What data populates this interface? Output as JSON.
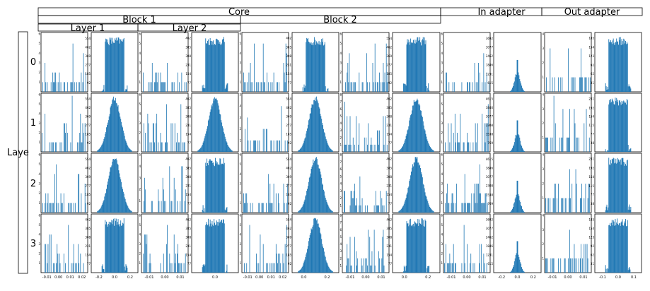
{
  "headers": {
    "core": "Core",
    "block1": "Block 1",
    "block2": "Block 2",
    "layer1": "Layer 1",
    "layer2": "Layer 2",
    "in_adapter": "In adapter",
    "out_adapter": "Out adapter",
    "row_axis_label": "Laye",
    "row_labels": [
      "0",
      "1",
      "2",
      "3"
    ]
  },
  "colors": {
    "bar": "#1f77b4",
    "frame": "#000000",
    "background": "#ffffff"
  },
  "chart_data": {
    "type": "histogram-grid",
    "rows": 4,
    "columns": 12,
    "row_labels": [
      "0",
      "1",
      "2",
      "3"
    ],
    "column_groups": [
      {
        "group": "Core",
        "block": "Block 1",
        "layer": "Layer 1",
        "columns": [
          0,
          1
        ]
      },
      {
        "group": "Core",
        "block": "Block 1",
        "layer": "Layer 2",
        "columns": [
          2,
          3
        ]
      },
      {
        "group": "Core",
        "block": "Block 2",
        "layer": "",
        "columns": [
          4,
          5,
          6,
          7
        ]
      },
      {
        "group": "In adapter",
        "block": "",
        "layer": "",
        "columns": [
          8,
          9
        ]
      },
      {
        "group": "Out adapter",
        "block": "",
        "layer": "",
        "columns": [
          10,
          11
        ]
      }
    ],
    "x_ticks_bottom": [
      [
        "-0.01",
        "0.00",
        "0.01",
        "0.02"
      ],
      [
        "-0.2",
        "0.0",
        "0.2"
      ],
      [
        "-0.01",
        "0.00",
        "0.01"
      ],
      [
        "0.0"
      ],
      [
        "-0.01",
        "0.00",
        "0.01",
        "0.02"
      ],
      [
        "0.0",
        "0.2"
      ],
      [
        "-0.01",
        "0.00",
        "0.01"
      ],
      [
        "0.0",
        "0.2"
      ],
      [
        "-0.01",
        "0.00",
        "0.01"
      ],
      [
        "-0.2",
        "0.0",
        "0.2"
      ],
      [
        "-0.01",
        "0.00",
        "0.01"
      ],
      [
        "-0.1",
        "0.0",
        "0.1"
      ]
    ],
    "y_ticks": {
      "sparse_row0": [
        "0",
        "1",
        "2",
        "3",
        "4",
        "5",
        "6"
      ],
      "sparse_row1": [
        "0",
        "1",
        "2",
        "3",
        "4",
        "5",
        "6"
      ],
      "dense_core": [
        "0",
        "100",
        "200",
        "300",
        "400",
        "500",
        "600"
      ],
      "dense_in_adapter": [
        "0",
        "1000",
        "2000",
        "3000",
        "4000",
        "5000"
      ],
      "dense_out_adapter": [
        "0",
        "25",
        "50",
        "75",
        "100",
        "125",
        "150",
        "175",
        "200",
        "225",
        "250"
      ]
    },
    "panels": [
      {
        "row": 0,
        "col": 0,
        "kind": "sparse",
        "ymax": 6,
        "x_range": [
          -0.015,
          0.025
        ]
      },
      {
        "row": 0,
        "col": 1,
        "kind": "dense-flat",
        "ymax": 600,
        "x_range": [
          -0.25,
          0.25
        ]
      },
      {
        "row": 0,
        "col": 2,
        "kind": "sparse",
        "ymax": 6,
        "x_range": [
          -0.015,
          0.015
        ]
      },
      {
        "row": 0,
        "col": 3,
        "kind": "dense-flat",
        "ymax": 500,
        "x_range": [
          -0.25,
          0.25
        ]
      },
      {
        "row": 0,
        "col": 4,
        "kind": "sparse",
        "ymax": 6,
        "x_range": [
          -0.015,
          0.025
        ]
      },
      {
        "row": 0,
        "col": 5,
        "kind": "dense-flat",
        "ymax": 500,
        "x_range": [
          -0.25,
          0.25
        ]
      },
      {
        "row": 0,
        "col": 6,
        "kind": "sparse",
        "ymax": 6,
        "x_range": [
          -0.015,
          0.015
        ]
      },
      {
        "row": 0,
        "col": 7,
        "kind": "dense-flat",
        "ymax": 600,
        "x_range": [
          -0.25,
          0.25
        ]
      },
      {
        "row": 0,
        "col": 8,
        "kind": "sparse",
        "ymax": 6,
        "x_range": [
          -0.015,
          0.015
        ]
      },
      {
        "row": 0,
        "col": 9,
        "kind": "dense-peaked",
        "ymax": 4000,
        "x_range": [
          -0.25,
          0.25
        ]
      },
      {
        "row": 0,
        "col": 10,
        "kind": "sparse",
        "ymax": 4,
        "x_range": [
          -0.015,
          0.015
        ]
      },
      {
        "row": 0,
        "col": 11,
        "kind": "dense-flat",
        "ymax": 200,
        "x_range": [
          -0.15,
          0.15
        ]
      },
      {
        "row": 1,
        "col": 0,
        "kind": "sparse",
        "ymax": 6,
        "x_range": [
          -0.015,
          0.025
        ]
      },
      {
        "row": 1,
        "col": 1,
        "kind": "dense-gauss",
        "ymax": 600,
        "x_range": [
          -0.25,
          0.25
        ]
      },
      {
        "row": 1,
        "col": 2,
        "kind": "sparse",
        "ymax": 6,
        "x_range": [
          -0.015,
          0.015
        ]
      },
      {
        "row": 1,
        "col": 3,
        "kind": "dense-gauss",
        "ymax": 500,
        "x_range": [
          -0.25,
          0.25
        ]
      },
      {
        "row": 1,
        "col": 4,
        "kind": "sparse",
        "ymax": 5,
        "x_range": [
          -0.015,
          0.025
        ]
      },
      {
        "row": 1,
        "col": 5,
        "kind": "dense-gauss",
        "ymax": 600,
        "x_range": [
          -0.25,
          0.25
        ]
      },
      {
        "row": 1,
        "col": 6,
        "kind": "sparse",
        "ymax": 8,
        "x_range": [
          -0.015,
          0.015
        ]
      },
      {
        "row": 1,
        "col": 7,
        "kind": "dense-gauss",
        "ymax": 500,
        "x_range": [
          -0.25,
          0.25
        ]
      },
      {
        "row": 1,
        "col": 8,
        "kind": "sparse",
        "ymax": 6,
        "x_range": [
          -0.015,
          0.015
        ]
      },
      {
        "row": 1,
        "col": 9,
        "kind": "dense-peaked",
        "ymax": 5000,
        "x_range": [
          -0.25,
          0.25
        ]
      },
      {
        "row": 1,
        "col": 10,
        "kind": "sparse",
        "ymax": 4,
        "x_range": [
          -0.015,
          0.015
        ]
      },
      {
        "row": 1,
        "col": 11,
        "kind": "dense-flat",
        "ymax": 250,
        "x_range": [
          -0.15,
          0.15
        ]
      },
      {
        "row": 2,
        "col": 0,
        "kind": "sparse",
        "ymax": 6,
        "x_range": [
          -0.015,
          0.025
        ]
      },
      {
        "row": 2,
        "col": 1,
        "kind": "dense-gauss",
        "ymax": 600,
        "x_range": [
          -0.25,
          0.25
        ]
      },
      {
        "row": 2,
        "col": 2,
        "kind": "sparse",
        "ymax": 5,
        "x_range": [
          -0.015,
          0.015
        ]
      },
      {
        "row": 2,
        "col": 3,
        "kind": "dense-flat",
        "ymax": 500,
        "x_range": [
          -0.25,
          0.25
        ]
      },
      {
        "row": 2,
        "col": 4,
        "kind": "sparse",
        "ymax": 6,
        "x_range": [
          -0.015,
          0.025
        ]
      },
      {
        "row": 2,
        "col": 5,
        "kind": "dense-gauss",
        "ymax": 600,
        "x_range": [
          -0.25,
          0.25
        ]
      },
      {
        "row": 2,
        "col": 6,
        "kind": "sparse",
        "ymax": 8,
        "x_range": [
          -0.015,
          0.015
        ]
      },
      {
        "row": 2,
        "col": 7,
        "kind": "dense-gauss",
        "ymax": 500,
        "x_range": [
          -0.25,
          0.25
        ]
      },
      {
        "row": 2,
        "col": 8,
        "kind": "sparse",
        "ymax": 6,
        "x_range": [
          -0.015,
          0.015
        ]
      },
      {
        "row": 2,
        "col": 9,
        "kind": "dense-peaked",
        "ymax": 5000,
        "x_range": [
          -0.25,
          0.25
        ]
      },
      {
        "row": 2,
        "col": 10,
        "kind": "sparse",
        "ymax": 4,
        "x_range": [
          -0.015,
          0.015
        ]
      },
      {
        "row": 2,
        "col": 11,
        "kind": "dense-flat",
        "ymax": 250,
        "x_range": [
          -0.15,
          0.15
        ]
      },
      {
        "row": 3,
        "col": 0,
        "kind": "sparse",
        "ymax": 6,
        "x_range": [
          -0.015,
          0.025
        ]
      },
      {
        "row": 3,
        "col": 1,
        "kind": "dense-flat",
        "ymax": 500,
        "x_range": [
          -0.25,
          0.25
        ]
      },
      {
        "row": 3,
        "col": 2,
        "kind": "sparse",
        "ymax": 6,
        "x_range": [
          -0.015,
          0.015
        ]
      },
      {
        "row": 3,
        "col": 3,
        "kind": "dense-flat",
        "ymax": 500,
        "x_range": [
          -0.25,
          0.25
        ]
      },
      {
        "row": 3,
        "col": 4,
        "kind": "sparse",
        "ymax": 6,
        "x_range": [
          -0.015,
          0.025
        ]
      },
      {
        "row": 3,
        "col": 5,
        "kind": "dense-gauss",
        "ymax": 600,
        "x_range": [
          -0.25,
          0.25
        ]
      },
      {
        "row": 3,
        "col": 6,
        "kind": "sparse",
        "ymax": 8,
        "x_range": [
          -0.015,
          0.015
        ]
      },
      {
        "row": 3,
        "col": 7,
        "kind": "dense-flat",
        "ymax": 500,
        "x_range": [
          -0.25,
          0.25
        ]
      },
      {
        "row": 3,
        "col": 8,
        "kind": "sparse",
        "ymax": 6,
        "x_range": [
          -0.015,
          0.015
        ]
      },
      {
        "row": 3,
        "col": 9,
        "kind": "dense-peaked",
        "ymax": 4000,
        "x_range": [
          -0.25,
          0.25
        ]
      },
      {
        "row": 3,
        "col": 10,
        "kind": "sparse",
        "ymax": 4,
        "x_range": [
          -0.015,
          0.015
        ]
      },
      {
        "row": 3,
        "col": 11,
        "kind": "dense-flat",
        "ymax": 200,
        "x_range": [
          -0.15,
          0.15
        ]
      }
    ]
  }
}
